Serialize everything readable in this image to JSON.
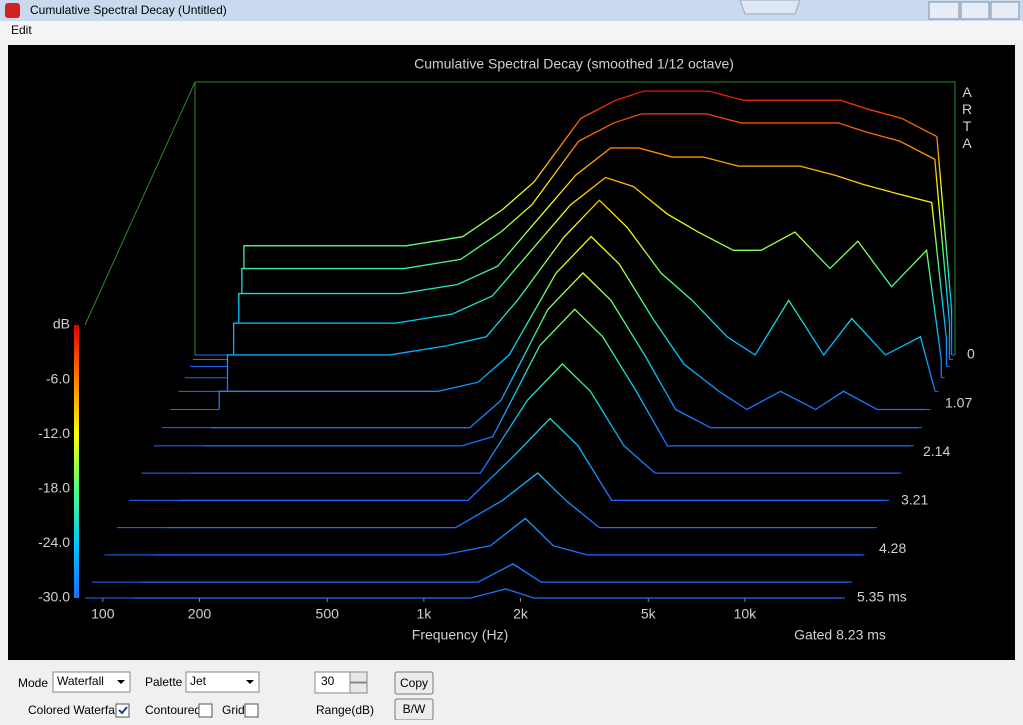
{
  "window": {
    "title": "Cumulative Spectral Decay  (Untitled)"
  },
  "menu": {
    "items": [
      "Edit"
    ]
  },
  "chart_data": {
    "type": "waterfall",
    "title": "Cumulative Spectral Decay (smoothed 1/12 octave)",
    "watermark": "ARTA",
    "xlabel": "Frequency (Hz)",
    "ylabel": "dB",
    "annotation": "Gated 8.23 ms",
    "log_x": true,
    "xlim": [
      88,
      20500
    ],
    "xticks": [
      100,
      200,
      500,
      {
        "value": 1000,
        "label": "1k"
      },
      {
        "value": 2000,
        "label": "2k"
      },
      {
        "value": 5000,
        "label": "5k"
      },
      {
        "value": 10000,
        "label": "10k"
      }
    ],
    "ylim": [
      -30,
      0
    ],
    "yticks": [
      {
        "value": -6,
        "label": "-6.0"
      },
      {
        "value": -12,
        "label": "-12.0"
      },
      {
        "value": -18,
        "label": "-18.0"
      },
      {
        "value": -24,
        "label": "-24.0"
      },
      {
        "value": -30,
        "label": "-30.0"
      }
    ],
    "tlim": [
      0,
      5.35
    ],
    "tticks": [
      0,
      1.07,
      2.14,
      3.21,
      4.28,
      {
        "value": 5.35,
        "label": "5.35 ms"
      }
    ],
    "palette_colors": [
      "#1e6cff",
      "#00c8ff",
      "#50ff80",
      "#ffff00",
      "#ff8000",
      "#e00000"
    ],
    "x": [
      125,
      200,
      300,
      400,
      600,
      800,
      1000,
      1400,
      1800,
      2200,
      2800,
      3500,
      4500,
      5500,
      7000,
      9000,
      11000,
      14000,
      18000,
      20000
    ],
    "slices": [
      {
        "time": 0,
        "values": [
          -18,
          -18,
          -18,
          -18,
          -17,
          -14,
          -11,
          -4,
          -2,
          -1,
          -1,
          -1,
          -2,
          -2,
          -2,
          -2,
          -3,
          -4,
          -6,
          -25
        ]
      },
      {
        "time": 0.1,
        "values": [
          -20,
          -20,
          -20,
          -20,
          -19,
          -16,
          -13,
          -6,
          -4,
          -3,
          -3,
          -3,
          -4,
          -4,
          -4,
          -4,
          -5,
          -6,
          -8,
          -26
        ]
      },
      {
        "time": 0.25,
        "values": [
          -22,
          -22,
          -22,
          -22,
          -21,
          -19,
          -15,
          -9,
          -6,
          -6,
          -7,
          -7,
          -8,
          -8,
          -8,
          -9,
          -10,
          -11,
          -12,
          -27
        ]
      },
      {
        "time": 0.5,
        "values": [
          -24,
          -24,
          -24,
          -24,
          -23,
          -21,
          -17,
          -11,
          -8,
          -9,
          -12,
          -14,
          -16,
          -16,
          -14,
          -18,
          -15,
          -20,
          -16,
          -28
        ]
      },
      {
        "time": 0.8,
        "values": [
          -26,
          -26,
          -26,
          -26,
          -25,
          -24,
          -20,
          -13,
          -9,
          -12,
          -17,
          -20,
          -24,
          -26,
          -20,
          -26,
          -22,
          -26,
          -24,
          -30
        ]
      },
      {
        "time": 1.2,
        "values": [
          -28,
          -28,
          -28,
          -28,
          -28,
          -27,
          -24,
          -15,
          -11,
          -14,
          -20,
          -25,
          -28,
          -30,
          -28,
          -30,
          -28,
          -30,
          -30,
          -30
        ]
      },
      {
        "time": 1.6,
        "values": [
          -30,
          -30,
          -30,
          -30,
          -30,
          -30,
          -27,
          -17,
          -13,
          -16,
          -22,
          -28,
          -30,
          -30,
          -30,
          -30,
          -30,
          -30,
          -30,
          -30
        ]
      },
      {
        "time": 2.0,
        "values": [
          -30,
          -30,
          -30,
          -30,
          -30,
          -30,
          -29,
          -19,
          -15,
          -18,
          -24,
          -30,
          -30,
          -30,
          -30,
          -30,
          -30,
          -30,
          -30,
          -30
        ]
      },
      {
        "time": 2.6,
        "values": [
          -30,
          -30,
          -30,
          -30,
          -30,
          -30,
          -30,
          -22,
          -18,
          -21,
          -27,
          -30,
          -30,
          -30,
          -30,
          -30,
          -30,
          -30,
          -30,
          -30
        ]
      },
      {
        "time": 3.2,
        "values": [
          -30,
          -30,
          -30,
          -30,
          -30,
          -30,
          -30,
          -25,
          -21,
          -24,
          -30,
          -30,
          -30,
          -30,
          -30,
          -30,
          -30,
          -30,
          -30,
          -30
        ]
      },
      {
        "time": 3.8,
        "values": [
          -30,
          -30,
          -30,
          -30,
          -30,
          -30,
          -30,
          -27,
          -24,
          -27,
          -30,
          -30,
          -30,
          -30,
          -30,
          -30,
          -30,
          -30,
          -30,
          -30
        ]
      },
      {
        "time": 4.4,
        "values": [
          -30,
          -30,
          -30,
          -30,
          -30,
          -30,
          -30,
          -29,
          -26,
          -29,
          -30,
          -30,
          -30,
          -30,
          -30,
          -30,
          -30,
          -30,
          -30,
          -30
        ]
      },
      {
        "time": 5.0,
        "values": [
          -30,
          -30,
          -30,
          -30,
          -30,
          -30,
          -30,
          -30,
          -28,
          -30,
          -30,
          -30,
          -30,
          -30,
          -30,
          -30,
          -30,
          -30,
          -30,
          -30
        ]
      },
      {
        "time": 5.35,
        "values": [
          -30,
          -30,
          -30,
          -30,
          -30,
          -30,
          -30,
          -30,
          -29,
          -30,
          -30,
          -30,
          -30,
          -30,
          -30,
          -30,
          -30,
          -30,
          -30,
          -30
        ]
      }
    ]
  },
  "controls": {
    "mode_label": "Mode",
    "mode_value": "Waterfall",
    "palette_label": "Palette",
    "palette_value": "Jet",
    "range_value": 30,
    "range_label": "Range(dB)",
    "copy": "Copy",
    "bw": "B/W",
    "colored_waterfall": "Colored Waterfall",
    "colored_waterfall_checked": true,
    "contoured": "Contoured",
    "contoured_checked": false,
    "grid": "Grid",
    "grid_checked": false
  }
}
